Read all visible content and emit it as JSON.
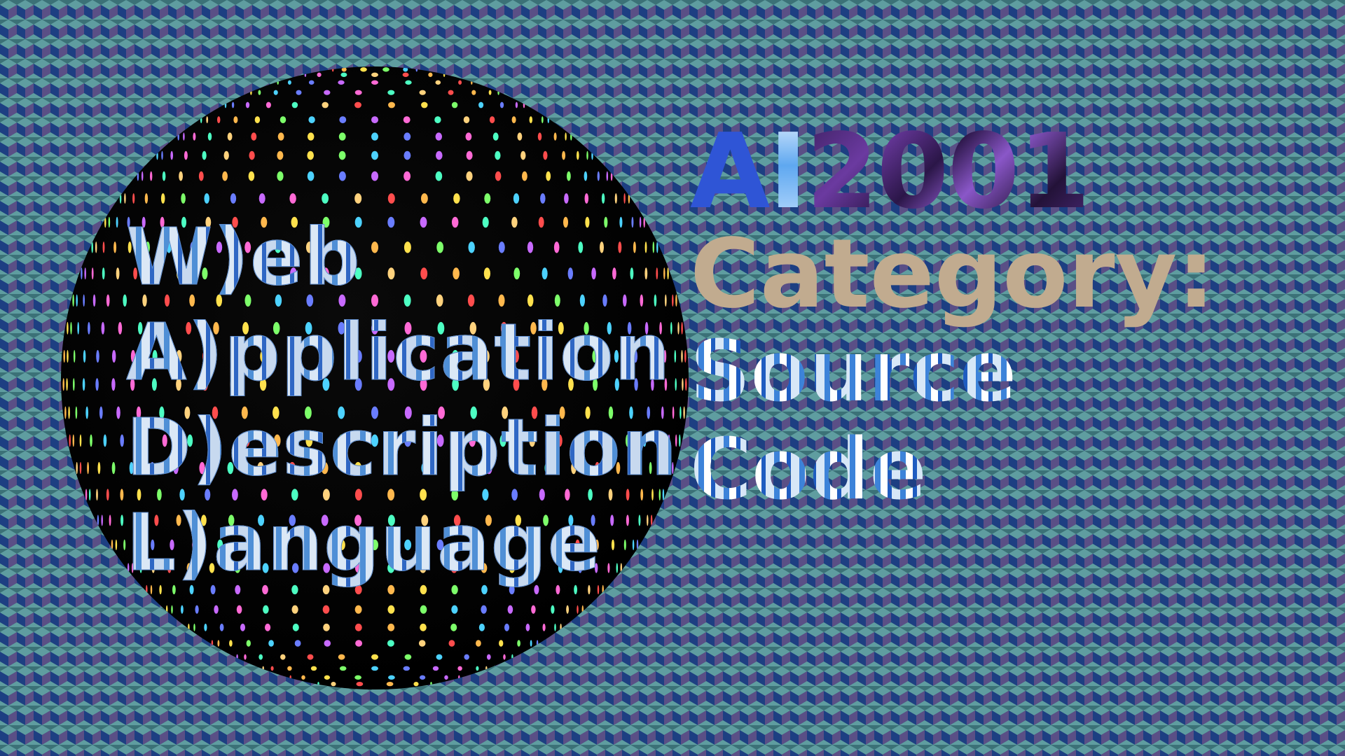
{
  "acronym": {
    "lines": [
      "W)eb",
      "A)pplication",
      "D)escription",
      "L)anguage"
    ]
  },
  "brand": {
    "part_a": "A",
    "part_i": "I",
    "year": "2001"
  },
  "category": {
    "label": "Category:",
    "value_line1": "Source",
    "value_line2": "Code"
  },
  "colors": {
    "cube_top": "#5f9da0",
    "cube_left": "#1d3f82",
    "cube_right": "#5a4f86",
    "sphere": "#000000",
    "category_text": "#c1ab8f",
    "ai_blue": "#2f55d6"
  },
  "icons": {
    "background": "isometric-cube-pattern",
    "sphere": "dotted-globe-graphic"
  }
}
